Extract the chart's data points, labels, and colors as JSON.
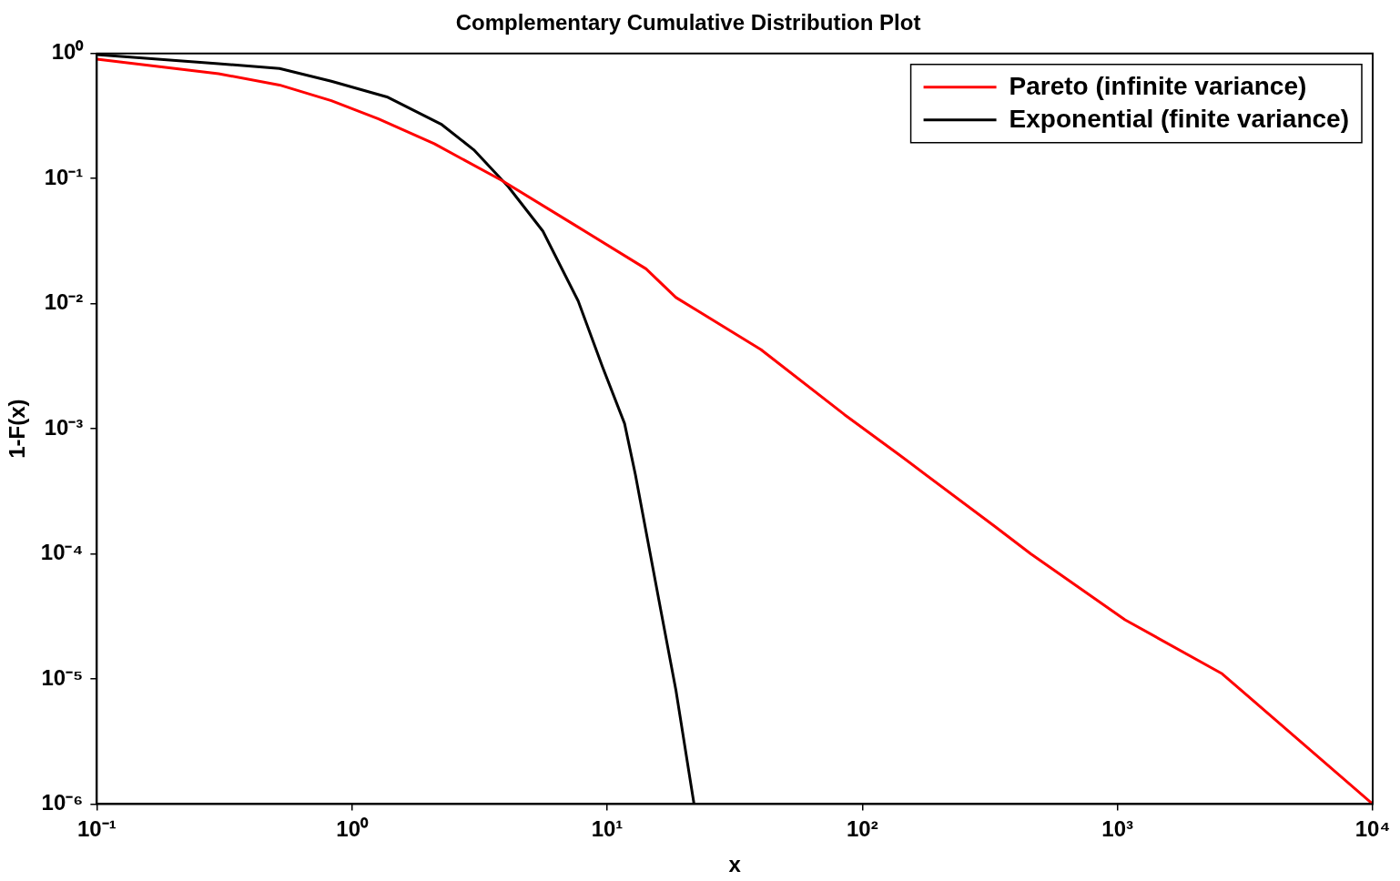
{
  "chart_data": {
    "type": "line",
    "title": "Complementary Cumulative Distribution Plot",
    "xlabel": "x",
    "ylabel": "1-F(x)",
    "log": "xy",
    "grid": false,
    "legend": "top right",
    "marker": "none",
    "line_style": "solid",
    "xlim": [
      0.1,
      10000
    ],
    "ylim": [
      1e-06,
      1
    ],
    "xticks": [
      {
        "value": 0.1,
        "label": "10⁻¹"
      },
      {
        "value": 1,
        "label": "10⁰"
      },
      {
        "value": 10,
        "label": "10¹"
      },
      {
        "value": 100,
        "label": "10²"
      },
      {
        "value": 1000,
        "label": "10³"
      },
      {
        "value": 10000,
        "label": "10⁴"
      }
    ],
    "yticks": [
      {
        "value": 1e-06,
        "label": "10⁻⁶"
      },
      {
        "value": 1e-05,
        "label": "10⁻⁵"
      },
      {
        "value": 0.0001,
        "label": "10⁻⁴"
      },
      {
        "value": 0.001,
        "label": "10⁻³"
      },
      {
        "value": 0.01,
        "label": "10⁻²"
      },
      {
        "value": 0.1,
        "label": "10⁻¹"
      },
      {
        "value": 1,
        "label": "10⁰"
      }
    ],
    "series": [
      {
        "name": "Pareto (infinite variance)",
        "color": "#ff0000",
        "x": [
          0.1,
          0.3,
          0.52,
          0.83,
          1.27,
          2.1,
          3.85,
          7.4,
          14.2,
          18.6,
          40,
          85,
          138,
          330,
          457,
          1070,
          2570,
          10000
        ],
        "values": [
          0.9,
          0.69,
          0.56,
          0.42,
          0.3,
          0.19,
          0.097,
          0.043,
          0.019,
          0.0112,
          0.0043,
          0.0013,
          0.00063,
          0.000166,
          0.0001,
          2.97e-05,
          1.1e-05,
          1e-06
        ]
      },
      {
        "name": "Exponential (finite variance)",
        "color": "#000000",
        "x": [
          0.1,
          0.3,
          0.52,
          0.83,
          1.37,
          2.25,
          3,
          4.1,
          5.6,
          7.7,
          9.6,
          11.7,
          12.9,
          16.2,
          18.6,
          21.9
        ],
        "values": [
          0.98,
          0.83,
          0.76,
          0.6,
          0.45,
          0.27,
          0.17,
          0.086,
          0.038,
          0.0105,
          0.0031,
          0.0011,
          0.00043,
          3.6e-05,
          8.1e-06,
          1e-06
        ]
      }
    ]
  }
}
